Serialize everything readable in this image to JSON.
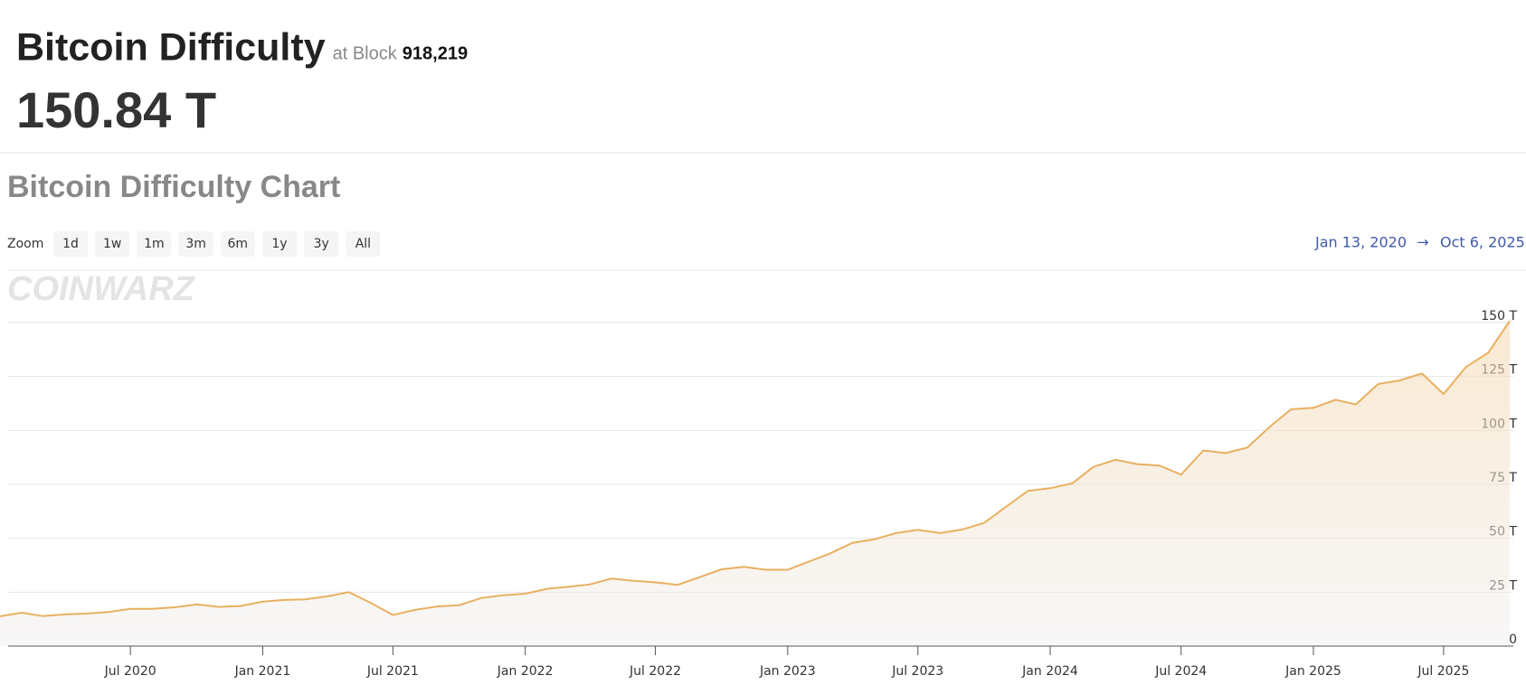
{
  "header": {
    "title": "Bitcoin Difficulty",
    "block_prefix": "at Block",
    "block": "918,219",
    "current_value": "150.84 T"
  },
  "chart_title": "Bitcoin Difficulty Chart",
  "zoom": {
    "label": "Zoom",
    "buttons": [
      "1d",
      "1w",
      "1m",
      "3m",
      "6m",
      "1y",
      "3y",
      "All"
    ]
  },
  "range": {
    "from": "Jan 13, 2020",
    "arrow": "→",
    "to": "Oct 6, 2025"
  },
  "watermark": "COINWARZ",
  "chart_data": {
    "type": "area",
    "color": "#e8b060",
    "x": [
      "2020-01",
      "2020-02",
      "2020-03",
      "2020-04",
      "2020-05",
      "2020-06",
      "2020-07",
      "2020-08",
      "2020-09",
      "2020-10",
      "2020-11",
      "2020-12",
      "2021-01",
      "2021-02",
      "2021-03",
      "2021-04",
      "2021-05",
      "2021-06",
      "2021-07",
      "2021-08",
      "2021-09",
      "2021-10",
      "2021-11",
      "2021-12",
      "2022-01",
      "2022-02",
      "2022-03",
      "2022-04",
      "2022-05",
      "2022-06",
      "2022-07",
      "2022-08",
      "2022-09",
      "2022-10",
      "2022-11",
      "2022-12",
      "2023-01",
      "2023-02",
      "2023-03",
      "2023-04",
      "2023-05",
      "2023-06",
      "2023-07",
      "2023-08",
      "2023-09",
      "2023-10",
      "2023-11",
      "2023-12",
      "2024-01",
      "2024-02",
      "2024-03",
      "2024-04",
      "2024-05",
      "2024-06",
      "2024-07",
      "2024-08",
      "2024-09",
      "2024-10",
      "2024-11",
      "2024-12",
      "2025-01",
      "2025-02",
      "2025-03",
      "2025-04",
      "2025-05",
      "2025-06",
      "2025-07",
      "2025-08",
      "2025-09",
      "2025-10"
    ],
    "values": [
      13.8,
      15.5,
      13.9,
      14.7,
      15.1,
      15.8,
      17.3,
      17.3,
      18.0,
      19.3,
      18.2,
      18.6,
      20.6,
      21.4,
      21.7,
      23.1,
      25.0,
      19.9,
      14.4,
      16.8,
      18.4,
      19.0,
      22.3,
      23.6,
      24.3,
      26.6,
      27.5,
      28.6,
      31.3,
      30.3,
      29.6,
      28.4,
      32.0,
      35.6,
      36.8,
      35.4,
      35.4,
      39.4,
      43.0,
      47.9,
      49.5,
      52.4,
      53.9,
      52.4,
      54.1,
      57.1,
      64.7,
      72.0,
      73.2,
      75.5,
      83.1,
      86.4,
      84.4,
      83.7,
      79.5,
      90.7,
      89.5,
      92.0,
      101.6,
      109.8,
      110.5,
      114.2,
      112.1,
      121.5,
      123.2,
      126.4,
      116.9,
      129.4,
      136.0,
      150.8
    ],
    "xlim": [
      "2020-01-13",
      "2025-10-06"
    ],
    "xticks": [
      {
        "value": "2020-07",
        "label": "Jul 2020"
      },
      {
        "value": "2021-01",
        "label": "Jan 2021"
      },
      {
        "value": "2021-07",
        "label": "Jul 2021"
      },
      {
        "value": "2022-01",
        "label": "Jan 2022"
      },
      {
        "value": "2022-07",
        "label": "Jul 2022"
      },
      {
        "value": "2023-01",
        "label": "Jan 2023"
      },
      {
        "value": "2023-07",
        "label": "Jul 2023"
      },
      {
        "value": "2024-01",
        "label": "Jan 2024"
      },
      {
        "value": "2024-07",
        "label": "Jul 2024"
      },
      {
        "value": "2025-01",
        "label": "Jan 2025"
      },
      {
        "value": "2025-07",
        "label": "Jul 2025"
      }
    ],
    "ylim": [
      0,
      150
    ],
    "yticks": [
      0,
      {
        "value": 25,
        "label": "25 T"
      },
      {
        "value": 50,
        "label": "50 T"
      },
      {
        "value": 75,
        "label": "75 T"
      },
      {
        "value": 100,
        "label": "100 T"
      },
      {
        "value": 125,
        "label": "125 T"
      },
      {
        "value": 150,
        "label": "150 T"
      }
    ],
    "grid": true
  }
}
